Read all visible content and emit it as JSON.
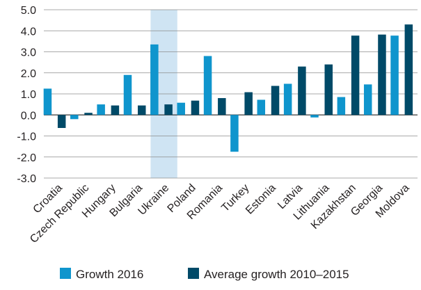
{
  "chart_data": {
    "type": "bar",
    "categories": [
      "Croatia",
      "Czech Republic",
      "Hungary",
      "Bulgaria",
      "Ukraine",
      "Poland",
      "Romania",
      "Turkey",
      "Estonia",
      "Latvia",
      "Lithuania",
      "Kazakhstan",
      "Georgia",
      "Moldova"
    ],
    "series": [
      {
        "name": "Growth 2016",
        "color": "#0f95cd",
        "values": [
          1.25,
          -0.2,
          0.5,
          1.9,
          3.35,
          0.58,
          2.8,
          -1.75,
          0.72,
          1.48,
          -0.12,
          0.85,
          1.45,
          3.77
        ]
      },
      {
        "name": "Average growth 2010–2015",
        "color": "#004a68",
        "values": [
          -0.62,
          0.1,
          0.45,
          0.45,
          0.5,
          0.68,
          0.8,
          1.08,
          1.38,
          2.3,
          2.4,
          3.77,
          3.82,
          4.3
        ]
      }
    ],
    "y_ticks": [
      "5.0",
      "4.0",
      "3.0",
      "2.0",
      "1.0",
      "0.0",
      "-1.0",
      "-2.0",
      "-3.0"
    ],
    "ylim": [
      -3,
      5
    ],
    "grid": true,
    "highlight_category": "Ukraine",
    "highlight_color": "#cfe4f3",
    "legend_position": "bottom"
  }
}
